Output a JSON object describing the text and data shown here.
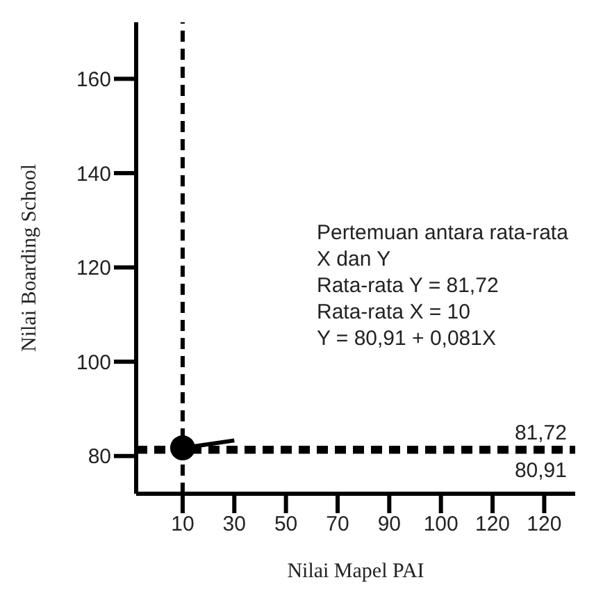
{
  "chart_data": {
    "type": "line",
    "xlabel": "Nilai Mapel PAI",
    "ylabel": "Nilai Boarding School",
    "categories": [
      "10",
      "30",
      "50",
      "70",
      "90",
      "100",
      "120",
      "120"
    ],
    "ylim": [
      72,
      172
    ],
    "yticks": [
      80,
      100,
      120,
      140,
      160
    ],
    "grid": false,
    "legend": false,
    "series": [
      {
        "color": "#000000",
        "x": [
          "10",
          "30"
        ],
        "values": [
          81.7,
          83.3
        ]
      },
      {
        "type": "scatter",
        "color": "#000000",
        "marker": "circle",
        "x": [
          "10"
        ],
        "values": [
          81.72
        ]
      }
    ],
    "ref_lines": [
      {
        "axis": "y",
        "value": 81.72,
        "label": "81,72",
        "line_style": "dashed",
        "color": "#000000"
      },
      {
        "axis": "y",
        "value": 80.91,
        "label": "80,91",
        "line_style": "dashed",
        "color": "#000000"
      },
      {
        "axis": "x",
        "value": "10",
        "line_style": "dashed",
        "color": "#000000"
      }
    ],
    "annotations": [
      "Pertemuan antara rata-rata X dan Y",
      "Rata-rata Y = 81,72",
      "Rata-rata X = 10",
      "Y = 80,91 + 0,081X"
    ]
  }
}
